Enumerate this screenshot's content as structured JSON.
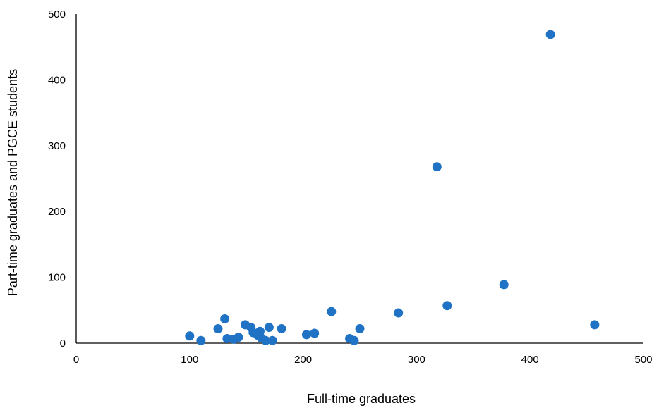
{
  "chart_data": {
    "type": "scatter",
    "title": "",
    "xlabel": "Full-time graduates",
    "ylabel": "Part-time graduates and PGCE students",
    "xlim": [
      0,
      500
    ],
    "ylim": [
      0,
      500
    ],
    "xticks": [
      0,
      100,
      200,
      300,
      400,
      500
    ],
    "yticks": [
      0,
      100,
      200,
      300,
      400,
      500
    ],
    "grid": false,
    "legend": "none",
    "marker_color": "#1f72c4",
    "series": [
      {
        "points": [
          {
            "x": 100,
            "y": 11
          },
          {
            "x": 110,
            "y": 4
          },
          {
            "x": 125,
            "y": 22
          },
          {
            "x": 131,
            "y": 37
          },
          {
            "x": 133,
            "y": 7
          },
          {
            "x": 139,
            "y": 6
          },
          {
            "x": 143,
            "y": 9
          },
          {
            "x": 149,
            "y": 28
          },
          {
            "x": 154,
            "y": 24
          },
          {
            "x": 156,
            "y": 16
          },
          {
            "x": 160,
            "y": 12
          },
          {
            "x": 162,
            "y": 18
          },
          {
            "x": 163,
            "y": 8
          },
          {
            "x": 167,
            "y": 4
          },
          {
            "x": 170,
            "y": 24
          },
          {
            "x": 173,
            "y": 4
          },
          {
            "x": 181,
            "y": 22
          },
          {
            "x": 203,
            "y": 13
          },
          {
            "x": 210,
            "y": 15
          },
          {
            "x": 225,
            "y": 48
          },
          {
            "x": 241,
            "y": 7
          },
          {
            "x": 245,
            "y": 4
          },
          {
            "x": 250,
            "y": 22
          },
          {
            "x": 284,
            "y": 46
          },
          {
            "x": 318,
            "y": 268
          },
          {
            "x": 327,
            "y": 57
          },
          {
            "x": 377,
            "y": 89
          },
          {
            "x": 418,
            "y": 469
          },
          {
            "x": 457,
            "y": 28
          }
        ]
      }
    ]
  }
}
